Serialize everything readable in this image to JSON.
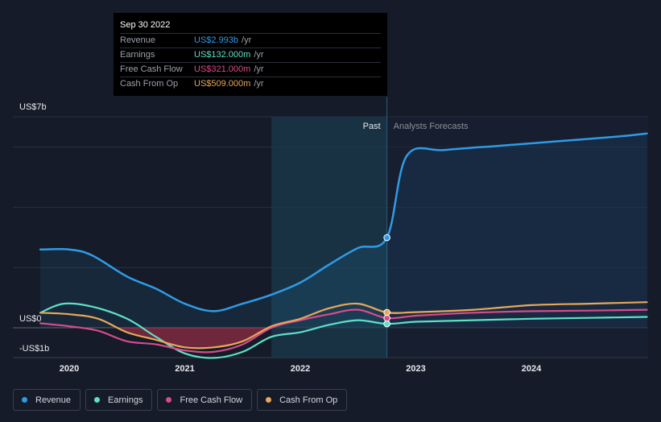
{
  "tooltip": {
    "date": "Sep 30 2022",
    "rows": [
      {
        "label": "Revenue",
        "value": "US$2.993b",
        "unit": "/yr",
        "color": "#2f9be6"
      },
      {
        "label": "Earnings",
        "value": "US$132.000m",
        "unit": "/yr",
        "color": "#5ee0c7"
      },
      {
        "label": "Free Cash Flow",
        "value": "US$321.000m",
        "unit": "/yr",
        "color": "#d94a8c"
      },
      {
        "label": "Cash From Op",
        "value": "US$509.000m",
        "unit": "/yr",
        "color": "#e8a85a"
      }
    ]
  },
  "labels": {
    "past": "Past",
    "forecast": "Analysts Forecasts"
  },
  "legend": [
    {
      "label": "Revenue",
      "color": "#2f9be6"
    },
    {
      "label": "Earnings",
      "color": "#5ee0c7"
    },
    {
      "label": "Free Cash Flow",
      "color": "#d94a8c"
    },
    {
      "label": "Cash From Op",
      "color": "#e8a85a"
    }
  ],
  "chart_data": {
    "type": "line",
    "unit": "US$ billions",
    "ylim": [
      -1,
      7
    ],
    "y_tick_labels": [
      {
        "value": 7,
        "label": "US$7b"
      },
      {
        "value": 0,
        "label": "US$0"
      },
      {
        "value": -1,
        "label": "-US$1b"
      }
    ],
    "xlim": [
      2019.73,
      2025.0
    ],
    "x_ticks": [
      2020,
      2021,
      2022,
      2023,
      2024
    ],
    "past_end": 2022.75,
    "highlight_start": 2021.75,
    "series": [
      {
        "name": "Revenue",
        "color": "#2f9be6",
        "points": [
          [
            2019.75,
            2.6
          ],
          [
            2020.0,
            2.6
          ],
          [
            2020.2,
            2.4
          ],
          [
            2020.5,
            1.7
          ],
          [
            2020.75,
            1.3
          ],
          [
            2021.0,
            0.8
          ],
          [
            2021.25,
            0.55
          ],
          [
            2021.5,
            0.8
          ],
          [
            2021.75,
            1.1
          ],
          [
            2022.0,
            1.5
          ],
          [
            2022.25,
            2.1
          ],
          [
            2022.5,
            2.65
          ],
          [
            2022.75,
            2.993
          ],
          [
            2022.92,
            5.7
          ],
          [
            2023.25,
            5.9
          ],
          [
            2023.75,
            6.05
          ],
          [
            2024.25,
            6.2
          ],
          [
            2024.75,
            6.35
          ],
          [
            2025.0,
            6.45
          ]
        ]
      },
      {
        "name": "Earnings",
        "color": "#5ee0c7",
        "points": [
          [
            2019.75,
            0.5
          ],
          [
            2019.95,
            0.8
          ],
          [
            2020.2,
            0.7
          ],
          [
            2020.5,
            0.3
          ],
          [
            2020.75,
            -0.3
          ],
          [
            2021.0,
            -0.85
          ],
          [
            2021.25,
            -1.0
          ],
          [
            2021.5,
            -0.8
          ],
          [
            2021.75,
            -0.3
          ],
          [
            2022.0,
            -0.15
          ],
          [
            2022.25,
            0.1
          ],
          [
            2022.5,
            0.25
          ],
          [
            2022.75,
            0.132
          ],
          [
            2023.0,
            0.2
          ],
          [
            2023.5,
            0.25
          ],
          [
            2024.0,
            0.3
          ],
          [
            2024.5,
            0.33
          ],
          [
            2025.0,
            0.36
          ]
        ]
      },
      {
        "name": "Free Cash Flow",
        "color": "#d94a8c",
        "points": [
          [
            2019.75,
            0.15
          ],
          [
            2020.0,
            0.05
          ],
          [
            2020.25,
            -0.1
          ],
          [
            2020.5,
            -0.45
          ],
          [
            2020.75,
            -0.55
          ],
          [
            2021.0,
            -0.75
          ],
          [
            2021.25,
            -0.8
          ],
          [
            2021.5,
            -0.55
          ],
          [
            2021.75,
            0.0
          ],
          [
            2022.0,
            0.25
          ],
          [
            2022.25,
            0.45
          ],
          [
            2022.5,
            0.6
          ],
          [
            2022.75,
            0.321
          ],
          [
            2023.0,
            0.4
          ],
          [
            2023.5,
            0.5
          ],
          [
            2024.0,
            0.55
          ],
          [
            2024.5,
            0.57
          ],
          [
            2025.0,
            0.6
          ]
        ]
      },
      {
        "name": "Cash From Op",
        "color": "#e8a85a",
        "points": [
          [
            2019.75,
            0.5
          ],
          [
            2020.0,
            0.45
          ],
          [
            2020.25,
            0.3
          ],
          [
            2020.5,
            -0.15
          ],
          [
            2020.75,
            -0.4
          ],
          [
            2021.0,
            -0.65
          ],
          [
            2021.25,
            -0.65
          ],
          [
            2021.5,
            -0.45
          ],
          [
            2021.75,
            0.05
          ],
          [
            2022.0,
            0.3
          ],
          [
            2022.25,
            0.65
          ],
          [
            2022.5,
            0.8
          ],
          [
            2022.75,
            0.509
          ],
          [
            2023.0,
            0.52
          ],
          [
            2023.5,
            0.6
          ],
          [
            2024.0,
            0.75
          ],
          [
            2024.5,
            0.8
          ],
          [
            2025.0,
            0.85
          ]
        ]
      }
    ]
  }
}
